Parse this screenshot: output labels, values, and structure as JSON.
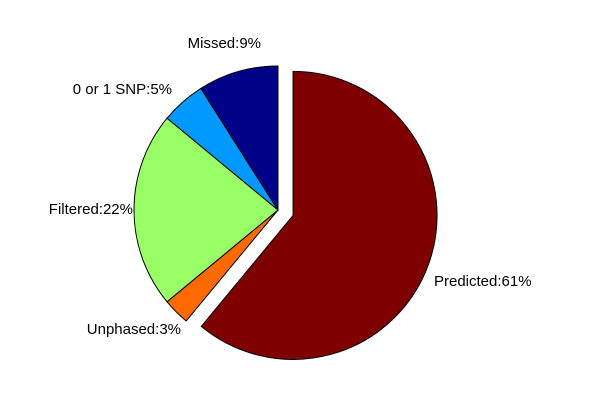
{
  "chart_data": {
    "type": "pie",
    "title": "",
    "slices": [
      {
        "label": "Predicted:61%",
        "value": 61,
        "color": "#7f0000",
        "exploded": true
      },
      {
        "label": "Unphased:3%",
        "value": 3,
        "color": "#ff6a00",
        "exploded": false
      },
      {
        "label": "Filtered:22%",
        "value": 22,
        "color": "#99ff66",
        "exploded": false
      },
      {
        "label": "0 or 1 SNP:5%",
        "value": 5,
        "color": "#0099ff",
        "exploded": false
      },
      {
        "label": "Missed:9%",
        "value": 9,
        "color": "#000088",
        "exploded": false
      }
    ]
  }
}
